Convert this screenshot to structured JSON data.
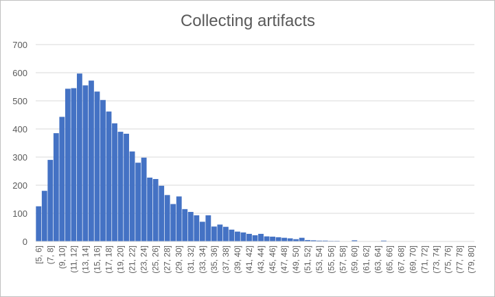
{
  "chart_data": {
    "type": "bar",
    "title": "Collecting artifacts",
    "xlabel": "",
    "ylabel": "",
    "ylim": [
      0,
      700
    ],
    "yticks": [
      0,
      100,
      200,
      300,
      400,
      500,
      600,
      700
    ],
    "grid": true,
    "legend": "none",
    "bar_color": "#4472c4",
    "categories": [
      "[5, 6]",
      "(6, 7]",
      "(7, 8]",
      "(8, 9]",
      "(9, 10]",
      "(10, 11]",
      "(11, 12]",
      "(12, 13]",
      "(13, 14]",
      "(14, 15]",
      "(15, 16]",
      "(16, 17]",
      "(17, 18]",
      "(18, 19]",
      "(19, 20]",
      "(20, 21]",
      "(21, 22]",
      "(22, 23]",
      "(23, 24]",
      "(24, 25]",
      "(25, 26]",
      "(26, 27]",
      "(27, 28]",
      "(28, 29]",
      "(29, 30]",
      "(30, 31]",
      "(31, 32]",
      "(32, 33]",
      "(33, 34]",
      "(34, 35]",
      "(35, 36]",
      "(36, 37]",
      "(37, 38]",
      "(38, 39]",
      "(39, 40]",
      "(40, 41]",
      "(41, 42]",
      "(42, 43]",
      "(43, 44]",
      "(44, 45]",
      "(45, 46]",
      "(46, 47]",
      "(47, 48]",
      "(48, 49]",
      "(49, 50]",
      "(50, 51]",
      "(51, 52]",
      "(52, 53]",
      "(53, 54]",
      "(54, 55]",
      "(55, 56]",
      "(56, 57]",
      "(57, 58]",
      "(58, 59]",
      "(59, 60]",
      "(60, 61]",
      "(61, 62]",
      "(62, 63]",
      "(63, 64]",
      "(64, 65]",
      "(65, 66]",
      "(66, 67]",
      "(67, 68]",
      "(68, 69]",
      "(69, 70]",
      "(70, 71]",
      "(71, 72]",
      "(72, 73]",
      "(73, 74]",
      "(74, 75]",
      "(75, 76]",
      "(76, 77]",
      "(77, 78]",
      "(78, 79]",
      "(79, 80]"
    ],
    "values": [
      125,
      180,
      290,
      385,
      443,
      543,
      545,
      597,
      555,
      572,
      533,
      503,
      462,
      420,
      390,
      383,
      320,
      280,
      298,
      227,
      222,
      198,
      165,
      133,
      160,
      115,
      105,
      93,
      70,
      93,
      53,
      60,
      52,
      42,
      35,
      32,
      27,
      22,
      27,
      18,
      17,
      15,
      13,
      11,
      8,
      13,
      5,
      4,
      3,
      3,
      2,
      2,
      1,
      1,
      4,
      1,
      1,
      1,
      1,
      3,
      1,
      1,
      1,
      1,
      1,
      1,
      1,
      1,
      1,
      1,
      1,
      1,
      1,
      1,
      1
    ],
    "labeled_every": 2
  }
}
